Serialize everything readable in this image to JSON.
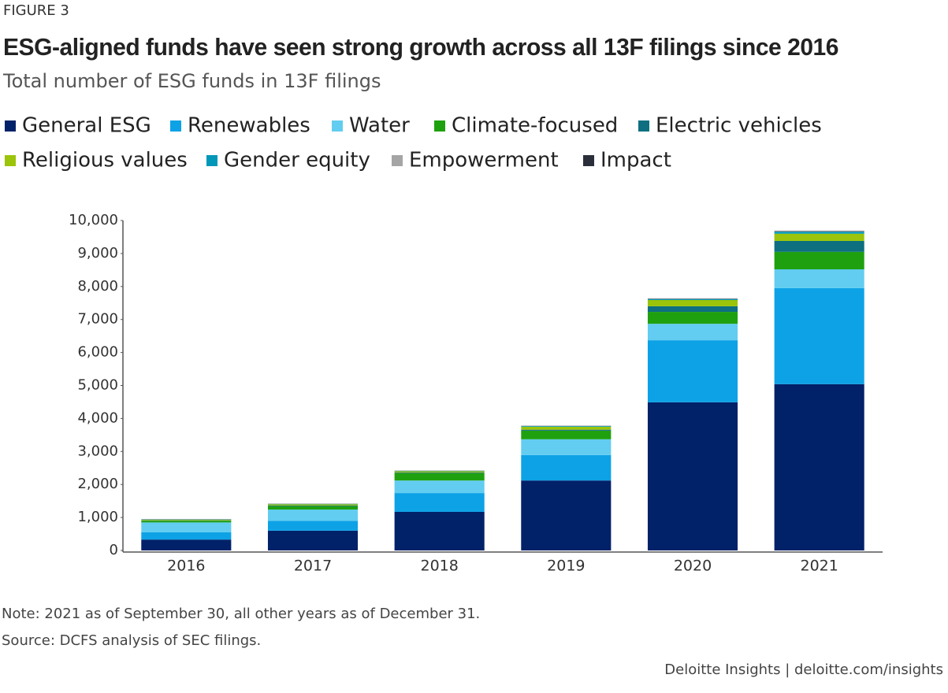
{
  "figure_label": "FIGURE 3",
  "chart_data": {
    "type": "stacked_bar",
    "title": "ESG-aligned funds have seen strong growth across all 13F filings since 2016",
    "subtitle": "Total number of ESG funds in 13F filings",
    "categories": [
      "2016",
      "2017",
      "2018",
      "2019",
      "2020",
      "2021"
    ],
    "series": [
      {
        "name": "General ESG",
        "color": "#012169",
        "values": [
          330,
          600,
          1170,
          2120,
          4490,
          5040
        ]
      },
      {
        "name": "Renewables",
        "color": "#0da2e6",
        "values": [
          220,
          300,
          570,
          770,
          1880,
          2910
        ]
      },
      {
        "name": "Water",
        "color": "#62cdf0",
        "values": [
          300,
          340,
          380,
          480,
          500,
          570
        ]
      },
      {
        "name": "Climate-focused",
        "color": "#1fa10f",
        "values": [
          50,
          100,
          220,
          260,
          360,
          530
        ]
      },
      {
        "name": "Electric vehicles",
        "color": "#0d6f80",
        "values": [
          10,
          20,
          20,
          30,
          170,
          330
        ]
      },
      {
        "name": "Religious values",
        "color": "#9bc40a",
        "values": [
          20,
          40,
          40,
          90,
          190,
          220
        ]
      },
      {
        "name": "Gender equity",
        "color": "#0097b9",
        "values": [
          10,
          10,
          10,
          20,
          30,
          60
        ]
      },
      {
        "name": "Empowerment",
        "color": "#a5a5a5",
        "values": [
          5,
          5,
          5,
          5,
          10,
          20
        ]
      },
      {
        "name": "Impact",
        "color": "#2b2f3a",
        "values": [
          5,
          5,
          5,
          5,
          10,
          10
        ]
      }
    ],
    "ylim": [
      0,
      10000
    ],
    "yticks": [
      0,
      {
        "value": 1000,
        "label": "1,000"
      },
      {
        "value": 2000,
        "label": "2,000"
      },
      {
        "value": 3000,
        "label": "3,000"
      },
      {
        "value": 4000,
        "label": "4,000"
      },
      {
        "value": 5000,
        "label": "5,000"
      },
      {
        "value": 6000,
        "label": "6,000"
      },
      {
        "value": 7000,
        "label": "7,000"
      },
      {
        "value": 8000,
        "label": "8,000"
      },
      {
        "value": 9000,
        "label": "9,000"
      },
      {
        "value": 10000,
        "label": "10,000"
      }
    ],
    "grid": false,
    "note": "Note: 2021 as of September 30, all other years as of December 31.",
    "source": "Source: DCFS analysis of SEC filings."
  },
  "footer": "Deloitte Insights | deloitte.com/insights"
}
